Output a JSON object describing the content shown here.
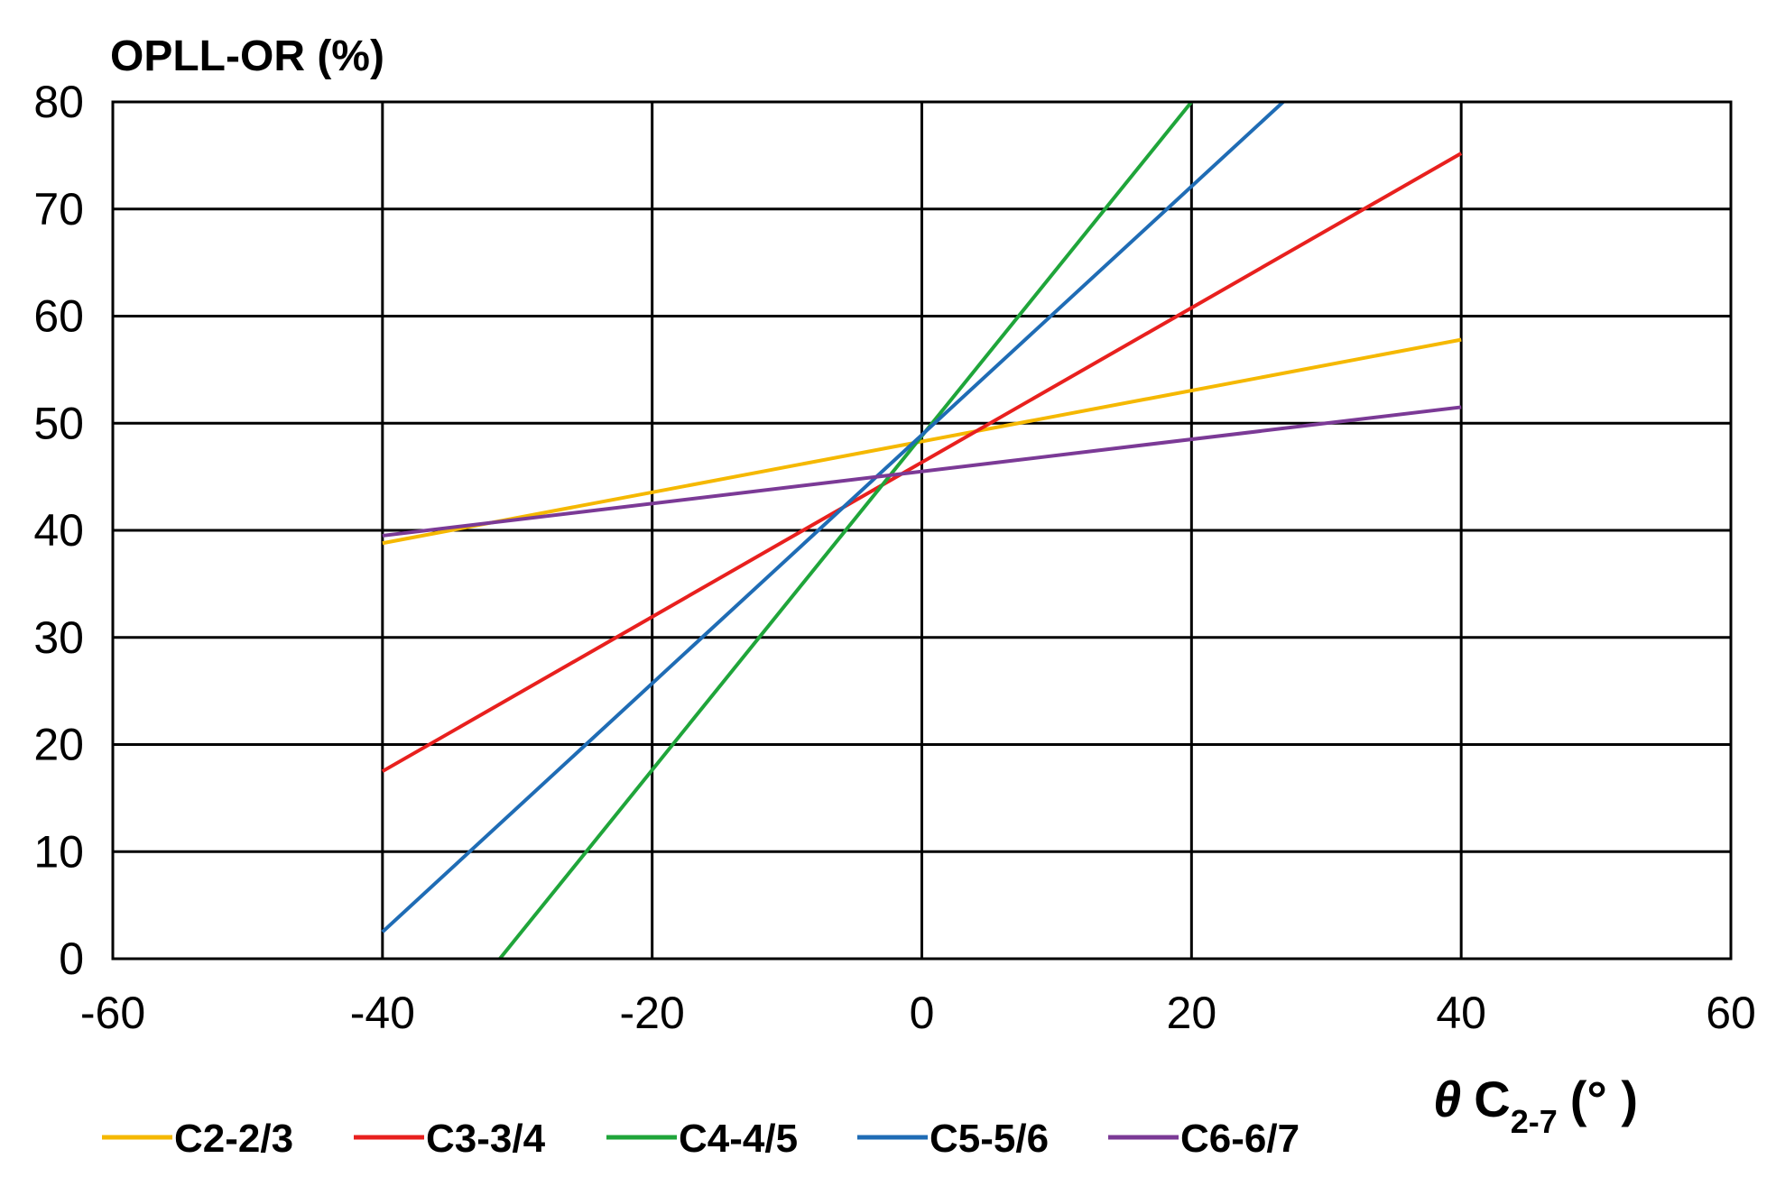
{
  "chart_data": {
    "type": "line",
    "ylabel": "OPLL-OR (%)",
    "xlabel": {
      "symbol": "θ",
      "base": "C",
      "subscript": "2-7",
      "unit": "(°  )"
    },
    "xlim": [
      -60,
      60
    ],
    "ylim": [
      0,
      80
    ],
    "xticks": [
      "-60",
      "-40",
      "-20",
      "0",
      "20",
      "40",
      "60"
    ],
    "yticks": [
      "0",
      "10",
      "20",
      "30",
      "40",
      "50",
      "60",
      "70",
      "80"
    ],
    "grid": true,
    "legend_position": "bottom-left",
    "series": [
      {
        "name": "C2-2/3",
        "color": "#F5B800",
        "x": [
          -40,
          40
        ],
        "y": [
          38.8,
          57.8
        ]
      },
      {
        "name": "C3-3/4",
        "color": "#E8201E",
        "x": [
          -40,
          40
        ],
        "y": [
          17.5,
          75.2
        ]
      },
      {
        "name": "C4-4/5",
        "color": "#1FA53A",
        "x": [
          -31.3,
          20
        ],
        "y": [
          0,
          80
        ]
      },
      {
        "name": "C5-5/6",
        "color": "#1F6CB5",
        "x": [
          -40,
          26.8
        ],
        "y": [
          2.5,
          80
        ]
      },
      {
        "name": "C6-6/7",
        "color": "#7B3A96",
        "x": [
          -40,
          40
        ],
        "y": [
          39.5,
          51.5
        ]
      }
    ]
  }
}
